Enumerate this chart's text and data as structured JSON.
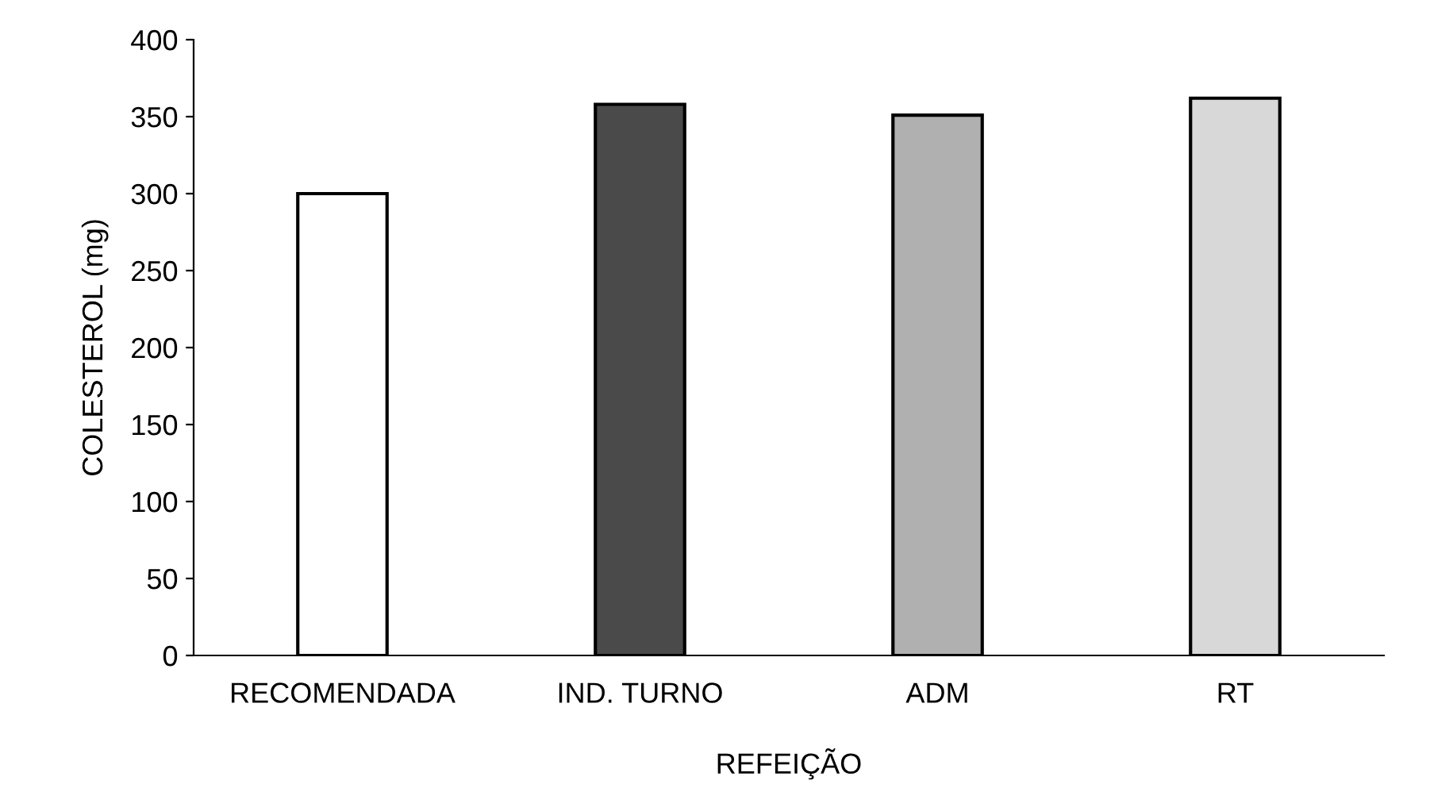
{
  "chart_data": {
    "type": "bar",
    "xlabel": "REFEIÇÃO",
    "ylabel": "COLESTEROL (mg)",
    "categories": [
      "RECOMENDADA",
      "IND. TURNO",
      "ADM",
      "RT"
    ],
    "values": [
      300,
      358,
      351,
      362
    ],
    "colors": [
      "#ffffff",
      "#4a4a4a",
      "#b0b0b0",
      "#d8d8d8"
    ],
    "ylim": [
      0,
      400
    ],
    "yticks": [
      0,
      50,
      100,
      150,
      200,
      250,
      300,
      350,
      400
    ],
    "grid": false,
    "legend": false
  }
}
